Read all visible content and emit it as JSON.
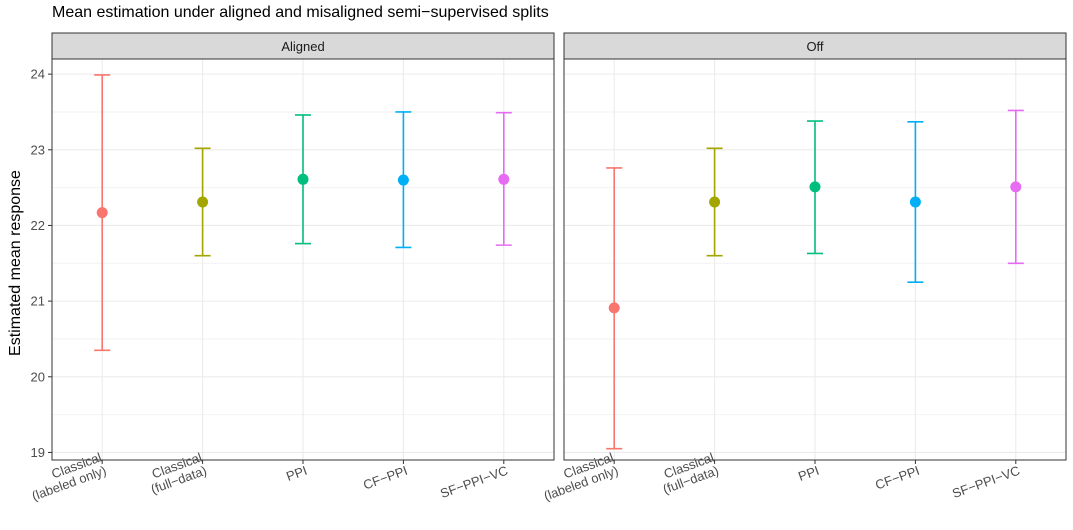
{
  "chart_data": {
    "type": "errorbar",
    "title": "Mean estimation under aligned and misaligned semi−supervised splits",
    "xlabel": "",
    "ylabel": "Estimated mean response",
    "ylim": [
      18.9,
      24.2
    ],
    "yticks": [
      19,
      20,
      21,
      22,
      23,
      24
    ],
    "grid": true,
    "categories": [
      [
        "Classical",
        "(labeled only)"
      ],
      [
        "Classical",
        "(full−data)"
      ],
      [
        "PPI"
      ],
      [
        "CF−PPI"
      ],
      [
        "SF−PPI−VC"
      ]
    ],
    "colors": [
      "#F8766D",
      "#A3A500",
      "#00BF7D",
      "#00B0F6",
      "#E76BF3"
    ],
    "panels": [
      {
        "name": "Aligned",
        "points": [
          {
            "estimate": 22.17,
            "lower": 20.35,
            "upper": 23.99
          },
          {
            "estimate": 22.31,
            "lower": 21.6,
            "upper": 23.02
          },
          {
            "estimate": 22.61,
            "lower": 21.76,
            "upper": 23.46
          },
          {
            "estimate": 22.6,
            "lower": 21.71,
            "upper": 23.5
          },
          {
            "estimate": 22.61,
            "lower": 21.74,
            "upper": 23.49
          }
        ]
      },
      {
        "name": "Off",
        "points": [
          {
            "estimate": 20.91,
            "lower": 19.05,
            "upper": 22.76
          },
          {
            "estimate": 22.31,
            "lower": 21.6,
            "upper": 23.02
          },
          {
            "estimate": 22.51,
            "lower": 21.63,
            "upper": 23.38
          },
          {
            "estimate": 22.31,
            "lower": 21.25,
            "upper": 23.37
          },
          {
            "estimate": 22.51,
            "lower": 21.5,
            "upper": 23.52
          }
        ]
      }
    ]
  }
}
